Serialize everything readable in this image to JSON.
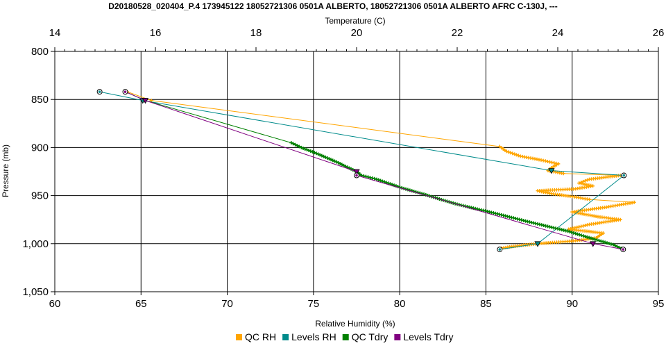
{
  "chart_data": {
    "type": "line",
    "title": "D20180528_020404_P.4 173945122 18052721306 0501A ALBERTO, 18052721306 0501A ALBERTO AFRC C-130J, ---",
    "top_axis": {
      "label": "Temperature (C)",
      "range": [
        14,
        26
      ],
      "ticks": [
        14,
        16,
        18,
        20,
        22,
        24,
        26
      ],
      "tick_labels": [
        "14",
        "16",
        "18",
        "20",
        "22",
        "24",
        "26"
      ]
    },
    "bottom_axis": {
      "label": "Relative Humidity (%)",
      "range": [
        60,
        95
      ],
      "ticks": [
        60,
        65,
        70,
        75,
        80,
        85,
        90,
        95
      ],
      "tick_labels": [
        "60",
        "65",
        "70",
        "75",
        "80",
        "85",
        "90",
        "95"
      ]
    },
    "y_axis": {
      "label": "Pressure (mb)",
      "range": [
        800,
        1050
      ],
      "inverted": true,
      "ticks": [
        800,
        850,
        900,
        950,
        1000,
        1050
      ],
      "tick_labels": [
        "800",
        "850",
        "900",
        "950",
        "1,000",
        "1,050"
      ]
    },
    "grid": true,
    "legend_position": "bottom",
    "series": [
      {
        "name": "QC RH",
        "axis": "rh",
        "color": "#FFA500",
        "marker": "plus",
        "points": [
          [
            64.2,
            842
          ],
          [
            65.6,
            851
          ],
          [
            85.8,
            899
          ],
          [
            86.2,
            904
          ],
          [
            87.0,
            909
          ],
          [
            88.2,
            913
          ],
          [
            89.2,
            917
          ],
          [
            88.8,
            921
          ],
          [
            88.6,
            924
          ],
          [
            89.5,
            927
          ],
          [
            92.8,
            929
          ],
          [
            91.0,
            933
          ],
          [
            90.4,
            937
          ],
          [
            91.2,
            940
          ],
          [
            90.2,
            943
          ],
          [
            88.0,
            945
          ],
          [
            88.8,
            948
          ],
          [
            90.0,
            951
          ],
          [
            91.0,
            954
          ],
          [
            93.6,
            957
          ],
          [
            92.0,
            962
          ],
          [
            90.0,
            967
          ],
          [
            91.5,
            972
          ],
          [
            92.8,
            975
          ],
          [
            91.0,
            980
          ],
          [
            89.8,
            985
          ],
          [
            91.8,
            989
          ],
          [
            91.4,
            994
          ],
          [
            90.2,
            997
          ],
          [
            88.0,
            1000
          ],
          [
            86.5,
            1003
          ],
          [
            85.8,
            1005
          ]
        ]
      },
      {
        "name": "Levels RH",
        "axis": "rh",
        "color": "#008B8B",
        "marker": "triangle",
        "points": [
          [
            62.6,
            842
          ],
          [
            65.1,
            851
          ],
          [
            88.8,
            924
          ],
          [
            93.0,
            929
          ],
          [
            88.0,
            1000
          ],
          [
            85.8,
            1006
          ]
        ]
      },
      {
        "name": "QC Tdry",
        "axis": "temp",
        "color": "#008000",
        "marker": "plus",
        "points": [
          [
            15.4,
            842
          ],
          [
            15.8,
            851
          ],
          [
            18.7,
            895
          ],
          [
            18.9,
            900
          ],
          [
            19.2,
            906
          ],
          [
            19.6,
            915
          ],
          [
            20.0,
            925
          ],
          [
            20.1,
            929
          ],
          [
            20.4,
            933
          ],
          [
            20.9,
            942
          ],
          [
            21.3,
            948
          ],
          [
            21.8,
            956
          ],
          [
            22.0,
            959
          ],
          [
            22.8,
            969
          ],
          [
            23.4,
            977
          ],
          [
            24.2,
            987
          ],
          [
            24.7,
            995
          ],
          [
            25.1,
            1001
          ],
          [
            25.3,
            1006
          ]
        ]
      },
      {
        "name": "Levels Tdry",
        "axis": "temp",
        "color": "#800080",
        "marker": "triangle",
        "points": [
          [
            15.4,
            842
          ],
          [
            15.8,
            851
          ],
          [
            20.0,
            925
          ],
          [
            20.0,
            929
          ],
          [
            24.7,
            1000
          ],
          [
            25.3,
            1006
          ]
        ]
      }
    ]
  }
}
